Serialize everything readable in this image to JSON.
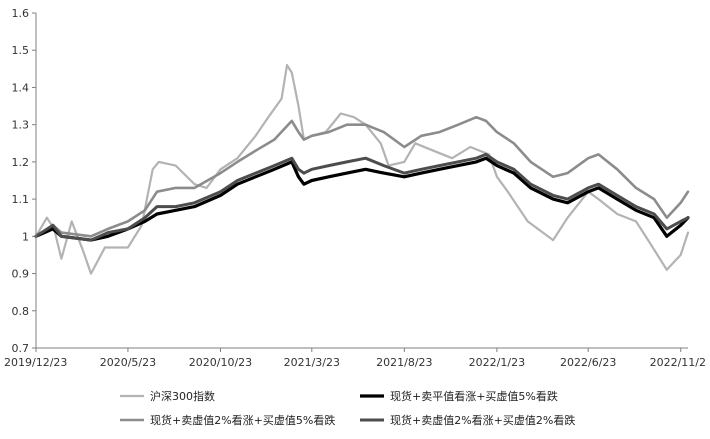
{
  "chart_data": {
    "type": "line",
    "title": "",
    "xlabel": "",
    "ylabel": "",
    "ylim": [
      0.7,
      1.6
    ],
    "yticks": [
      "0.7",
      "0.8",
      "0.9",
      "1",
      "1.1",
      "1.2",
      "1.3",
      "1.4",
      "1.5",
      "1.6"
    ],
    "xlim": [
      "2019-12-23",
      "2022-12-05"
    ],
    "xticks": [
      {
        "date": "2019-12-23",
        "label": "2019/12/23"
      },
      {
        "date": "2020-05-23",
        "label": "2020/5/23"
      },
      {
        "date": "2020-10-23",
        "label": "2020/10/23"
      },
      {
        "date": "2021-03-23",
        "label": "2021/3/23"
      },
      {
        "date": "2021-08-23",
        "label": "2021/8/23"
      },
      {
        "date": "2022-01-23",
        "label": "2022/1/23"
      },
      {
        "date": "2022-06-23",
        "label": "2022/6/23"
      },
      {
        "date": "2022-11-23",
        "label": "2022/11/2"
      }
    ],
    "grid": false,
    "legend": "bottom",
    "series": [
      {
        "name": "沪深300指数",
        "color": "#b3b3b3",
        "width": 2.2,
        "x": [
          "2019-12-23",
          "2020-01-10",
          "2020-01-22",
          "2020-02-03",
          "2020-02-20",
          "2020-03-10",
          "2020-03-23",
          "2020-04-15",
          "2020-05-23",
          "2020-06-15",
          "2020-07-03",
          "2020-07-13",
          "2020-08-10",
          "2020-09-10",
          "2020-09-30",
          "2020-10-23",
          "2020-11-20",
          "2020-12-20",
          "2021-01-10",
          "2021-02-01",
          "2021-02-10",
          "2021-02-18",
          "2021-03-01",
          "2021-03-10",
          "2021-03-23",
          "2021-04-15",
          "2021-05-10",
          "2021-06-01",
          "2021-06-20",
          "2021-07-15",
          "2021-07-28",
          "2021-08-23",
          "2021-09-10",
          "2021-10-10",
          "2021-11-10",
          "2021-12-10",
          "2022-01-10",
          "2022-01-23",
          "2022-02-10",
          "2022-03-15",
          "2022-04-26",
          "2022-05-20",
          "2022-06-23",
          "2022-07-10",
          "2022-08-10",
          "2022-09-10",
          "2022-09-30",
          "2022-10-31",
          "2022-11-23",
          "2022-12-05"
        ],
        "y": [
          1.0,
          1.05,
          1.02,
          0.94,
          1.04,
          0.96,
          0.9,
          0.97,
          0.97,
          1.03,
          1.18,
          1.2,
          1.19,
          1.14,
          1.13,
          1.18,
          1.21,
          1.27,
          1.32,
          1.37,
          1.46,
          1.44,
          1.35,
          1.26,
          1.27,
          1.28,
          1.33,
          1.32,
          1.3,
          1.25,
          1.19,
          1.2,
          1.25,
          1.23,
          1.21,
          1.24,
          1.22,
          1.16,
          1.12,
          1.04,
          0.99,
          1.05,
          1.12,
          1.1,
          1.06,
          1.04,
          0.99,
          0.91,
          0.95,
          1.01
        ]
      },
      {
        "name": "现货+卖平值看涨+买虚值5%看跌",
        "color": "#000000",
        "width": 3.2,
        "x": [
          "2019-12-23",
          "2020-01-20",
          "2020-02-03",
          "2020-03-23",
          "2020-04-20",
          "2020-05-23",
          "2020-06-20",
          "2020-07-10",
          "2020-08-10",
          "2020-09-10",
          "2020-10-23",
          "2020-11-20",
          "2020-12-20",
          "2021-01-20",
          "2021-02-18",
          "2021-03-01",
          "2021-03-10",
          "2021-03-23",
          "2021-04-20",
          "2021-05-20",
          "2021-06-20",
          "2021-07-20",
          "2021-08-23",
          "2021-09-20",
          "2021-10-20",
          "2021-11-20",
          "2021-12-20",
          "2022-01-05",
          "2022-01-23",
          "2022-02-20",
          "2022-03-20",
          "2022-04-26",
          "2022-05-20",
          "2022-06-23",
          "2022-07-10",
          "2022-08-10",
          "2022-09-10",
          "2022-10-10",
          "2022-10-31",
          "2022-11-23",
          "2022-12-05"
        ],
        "y": [
          1.0,
          1.02,
          1.0,
          0.99,
          1.0,
          1.02,
          1.04,
          1.06,
          1.07,
          1.08,
          1.11,
          1.14,
          1.16,
          1.18,
          1.2,
          1.16,
          1.14,
          1.15,
          1.16,
          1.17,
          1.18,
          1.17,
          1.16,
          1.17,
          1.18,
          1.19,
          1.2,
          1.21,
          1.19,
          1.17,
          1.13,
          1.1,
          1.09,
          1.12,
          1.13,
          1.1,
          1.07,
          1.05,
          1.0,
          1.03,
          1.05
        ]
      },
      {
        "name": "现货+卖虚值2%看涨+买虚值5%看跌",
        "color": "#8c8c8c",
        "width": 2.6,
        "x": [
          "2019-12-23",
          "2020-01-20",
          "2020-02-03",
          "2020-03-23",
          "2020-04-20",
          "2020-05-23",
          "2020-06-20",
          "2020-07-10",
          "2020-08-10",
          "2020-09-10",
          "2020-10-23",
          "2020-11-20",
          "2020-12-20",
          "2021-01-20",
          "2021-02-18",
          "2021-03-01",
          "2021-03-10",
          "2021-03-23",
          "2021-04-20",
          "2021-05-20",
          "2021-06-20",
          "2021-07-20",
          "2021-08-23",
          "2021-09-20",
          "2021-10-20",
          "2021-11-20",
          "2021-12-20",
          "2022-01-05",
          "2022-01-23",
          "2022-02-20",
          "2022-03-20",
          "2022-04-26",
          "2022-05-20",
          "2022-06-23",
          "2022-07-10",
          "2022-08-10",
          "2022-09-10",
          "2022-10-10",
          "2022-10-31",
          "2022-11-23",
          "2022-12-05"
        ],
        "y": [
          1.0,
          1.03,
          1.01,
          1.0,
          1.02,
          1.04,
          1.07,
          1.12,
          1.13,
          1.13,
          1.17,
          1.2,
          1.23,
          1.26,
          1.31,
          1.28,
          1.26,
          1.27,
          1.28,
          1.3,
          1.3,
          1.28,
          1.24,
          1.27,
          1.28,
          1.3,
          1.32,
          1.31,
          1.28,
          1.25,
          1.2,
          1.16,
          1.17,
          1.21,
          1.22,
          1.18,
          1.13,
          1.1,
          1.05,
          1.09,
          1.12
        ]
      },
      {
        "name": "现货+卖虚值2%看涨+买虚值2%看跌",
        "color": "#4d4d4d",
        "width": 3.0,
        "x": [
          "2019-12-23",
          "2020-01-20",
          "2020-02-03",
          "2020-03-23",
          "2020-04-20",
          "2020-05-23",
          "2020-06-20",
          "2020-07-10",
          "2020-08-10",
          "2020-09-10",
          "2020-10-23",
          "2020-11-20",
          "2020-12-20",
          "2021-01-20",
          "2021-02-18",
          "2021-03-01",
          "2021-03-10",
          "2021-03-23",
          "2021-04-20",
          "2021-05-20",
          "2021-06-20",
          "2021-07-20",
          "2021-08-23",
          "2021-09-20",
          "2021-10-20",
          "2021-11-20",
          "2021-12-20",
          "2022-01-05",
          "2022-01-23",
          "2022-02-20",
          "2022-03-20",
          "2022-04-26",
          "2022-05-20",
          "2022-06-23",
          "2022-07-10",
          "2022-08-10",
          "2022-09-10",
          "2022-10-10",
          "2022-10-31",
          "2022-11-23",
          "2022-12-05"
        ],
        "y": [
          1.0,
          1.03,
          1.0,
          0.99,
          1.01,
          1.02,
          1.05,
          1.08,
          1.08,
          1.09,
          1.12,
          1.15,
          1.17,
          1.19,
          1.21,
          1.18,
          1.17,
          1.18,
          1.19,
          1.2,
          1.21,
          1.19,
          1.17,
          1.18,
          1.19,
          1.2,
          1.21,
          1.22,
          1.2,
          1.18,
          1.14,
          1.11,
          1.1,
          1.13,
          1.14,
          1.11,
          1.08,
          1.06,
          1.02,
          1.04,
          1.05
        ]
      }
    ]
  }
}
